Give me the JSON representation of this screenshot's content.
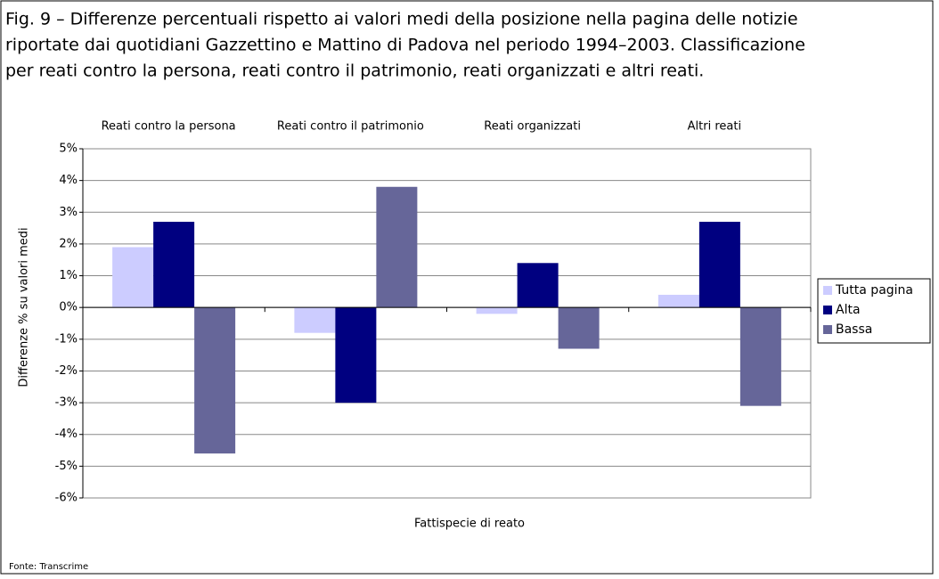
{
  "chart_data": {
    "type": "bar",
    "title": [
      "Fig. 9 – Differenze percentuali rispetto ai valori medi della posizione nella pagina delle notizie",
      "riportate dai quotidiani Gazzettino e Mattino di Padova nel periodo 1994–2003. Classificazione",
      "per reati contro la persona, reati contro il patrimonio, reati organizzati e altri reati."
    ],
    "categories": [
      "Reati contro la persona",
      "Reati contro il patrimonio",
      "Reati organizzati",
      "Altri reati"
    ],
    "series": [
      {
        "name": "Tutta pagina",
        "color": "#ccccff",
        "values": [
          1.9,
          -0.8,
          -0.2,
          0.4
        ]
      },
      {
        "name": "Alta",
        "color": "#000080",
        "values": [
          2.7,
          -3.0,
          1.4,
          2.7
        ]
      },
      {
        "name": "Bassa",
        "color": "#666699",
        "values": [
          -4.6,
          3.8,
          -1.3,
          -3.1
        ]
      }
    ],
    "ylabel": "Differenze % su valori medi",
    "xlabel": "Fattispecie di reato",
    "source": "Fonte: Transcrime",
    "ylim": [
      -6,
      5
    ],
    "yticks": [
      {
        "value": 5,
        "label": "5%"
      },
      {
        "value": 4,
        "label": "4%"
      },
      {
        "value": 3,
        "label": "3%"
      },
      {
        "value": 2,
        "label": "2%"
      },
      {
        "value": 1,
        "label": "1%"
      },
      {
        "value": 0,
        "label": "0%"
      },
      {
        "value": -1,
        "label": "-1%"
      },
      {
        "value": -2,
        "label": "-2%"
      },
      {
        "value": -3,
        "label": "-3%"
      },
      {
        "value": -4,
        "label": "-4%"
      },
      {
        "value": -5,
        "label": "-5%"
      },
      {
        "value": -6,
        "label": "-6%"
      }
    ],
    "grid": true,
    "legend": "right"
  }
}
